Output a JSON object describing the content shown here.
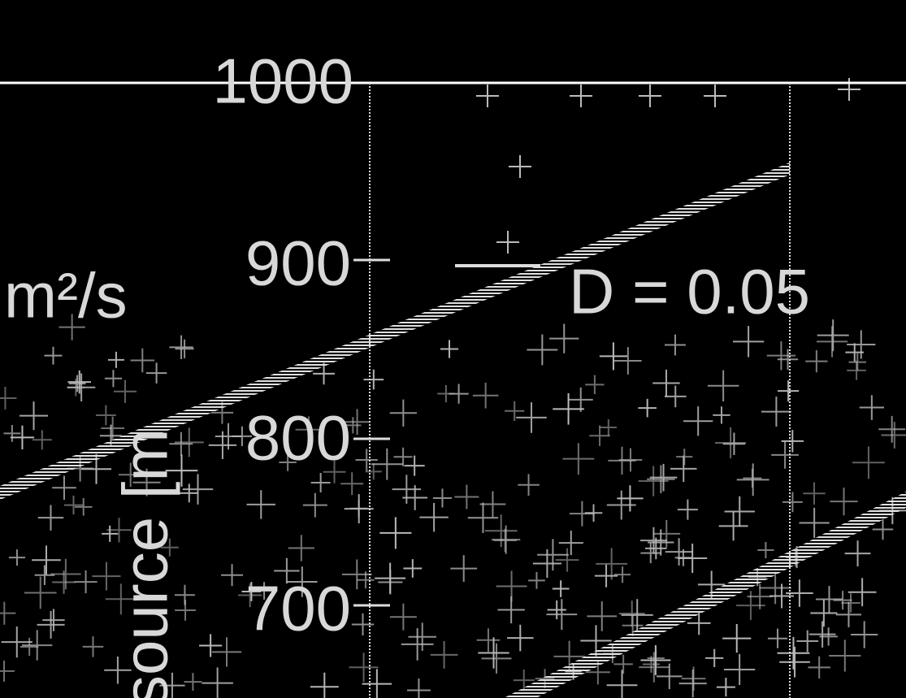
{
  "axis": {
    "ticks": [
      "1000",
      "900",
      "800",
      "700"
    ],
    "label": "source [m",
    "unit": "m²/s"
  },
  "annotation": "D = 0.05"
}
